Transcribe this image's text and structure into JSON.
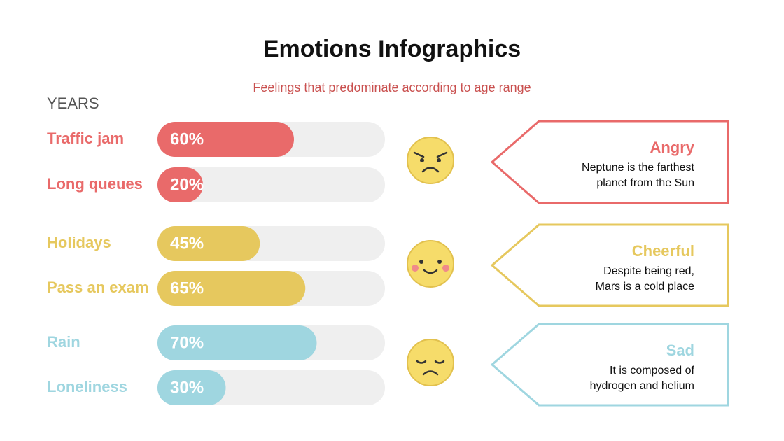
{
  "chart_data": {
    "type": "bar",
    "title": "Emotions Infographics",
    "subtitle": "Feelings that predominate according to age range",
    "axis_label": "YEARS",
    "categories": [
      "Traffic jam",
      "Long queues",
      "Holidays",
      "Pass an exam",
      "Rain",
      "Loneliness"
    ],
    "values": [
      60,
      20,
      45,
      65,
      70,
      30
    ],
    "value_labels": [
      "60%",
      "20%",
      "45%",
      "65%",
      "70%",
      "30%"
    ],
    "colors": [
      "#e96a6a",
      "#e96a6a",
      "#e6c85e",
      "#e6c85e",
      "#9fd6e0",
      "#9fd6e0"
    ],
    "xlim": [
      0,
      100
    ]
  },
  "callouts": [
    {
      "name": "Angry",
      "color": "#e96a6a",
      "lines": [
        "Neptune is the farthest",
        "planet from the Sun"
      ]
    },
    {
      "name": "Cheerful",
      "color": "#e6c85e",
      "lines": [
        "Despite being red,",
        "Mars is a cold place"
      ]
    },
    {
      "name": "Sad",
      "color": "#9fd6e0",
      "lines": [
        "It is composed of",
        "hydrogen and helium"
      ]
    }
  ]
}
